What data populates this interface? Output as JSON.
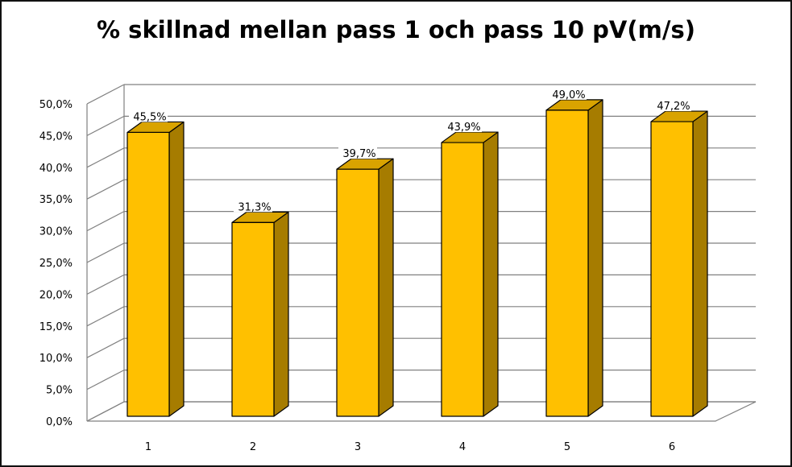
{
  "chart_data": {
    "type": "bar",
    "title": "% skillnad mellan pass 1 och pass 10 pV(m/s)",
    "categories": [
      "1",
      "2",
      "3",
      "4",
      "5",
      "6"
    ],
    "values": [
      45.5,
      31.3,
      39.7,
      43.9,
      49.0,
      47.2
    ],
    "data_labels": [
      "45,5%",
      "31,3%",
      "39,7%",
      "43,9%",
      "49,0%",
      "47,2%"
    ],
    "y_ticks": [
      "0,0%",
      "5,0%",
      "10,0%",
      "15,0%",
      "20,0%",
      "25,0%",
      "30,0%",
      "35,0%",
      "40,0%",
      "45,0%",
      "50,0%"
    ],
    "ylim": [
      0,
      50
    ],
    "ytick_step": 5,
    "xlabel": "",
    "ylabel": "",
    "grid": true,
    "legend": "none",
    "style_3d": true,
    "colors": {
      "bar_front": "#FFC000",
      "bar_side": "#A67C00",
      "bar_top": "#D9A300",
      "bar_edge": "#000000",
      "grid": "#808080",
      "wall_edge": "#808080"
    }
  }
}
